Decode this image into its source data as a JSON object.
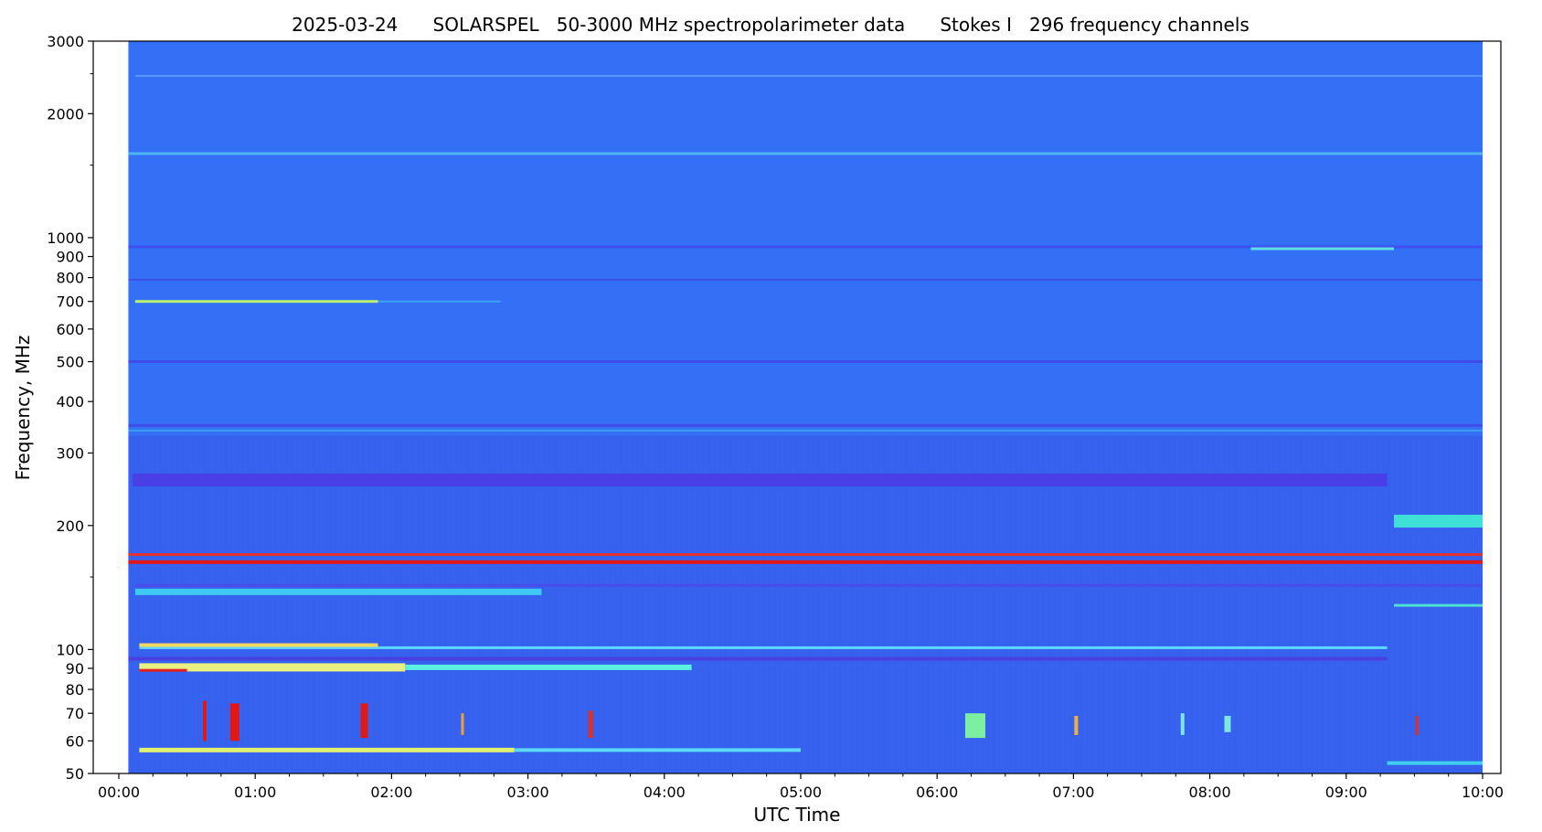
{
  "chart_data": {
    "type": "heatmap",
    "title": "2025-03-24      SOLARSPEL   50-3000 MHz spectropolarimeter data      Stokes I   296 frequency channels",
    "xlabel": "UTC Time",
    "ylabel": "Frequency, MHz",
    "x_range_hours": [
      0,
      10
    ],
    "y_range_mhz": [
      50,
      3000
    ],
    "y_scale": "log",
    "x_ticks": [
      {
        "hour": 0,
        "label": "00:00"
      },
      {
        "hour": 1,
        "label": "01:00"
      },
      {
        "hour": 2,
        "label": "02:00"
      },
      {
        "hour": 3,
        "label": "03:00"
      },
      {
        "hour": 4,
        "label": "04:00"
      },
      {
        "hour": 5,
        "label": "05:00"
      },
      {
        "hour": 6,
        "label": "06:00"
      },
      {
        "hour": 7,
        "label": "07:00"
      },
      {
        "hour": 8,
        "label": "08:00"
      },
      {
        "hour": 9,
        "label": "09:00"
      },
      {
        "hour": 10,
        "label": "10:00"
      }
    ],
    "y_ticks": [
      {
        "mhz": 50,
        "label": "50"
      },
      {
        "mhz": 60,
        "label": "60"
      },
      {
        "mhz": 70,
        "label": "70"
      },
      {
        "mhz": 80,
        "label": "80"
      },
      {
        "mhz": 90,
        "label": "90"
      },
      {
        "mhz": 100,
        "label": "100"
      },
      {
        "mhz": 200,
        "label": "200"
      },
      {
        "mhz": 300,
        "label": "300"
      },
      {
        "mhz": 400,
        "label": "400"
      },
      {
        "mhz": 500,
        "label": "500"
      },
      {
        "mhz": 600,
        "label": "600"
      },
      {
        "mhz": 700,
        "label": "700"
      },
      {
        "mhz": 800,
        "label": "800"
      },
      {
        "mhz": 900,
        "label": "900"
      },
      {
        "mhz": 1000,
        "label": "1000"
      },
      {
        "mhz": 2000,
        "label": "2000"
      },
      {
        "mhz": 3000,
        "label": "3000"
      }
    ],
    "y_minor_ticks_mhz": [
      150,
      1500,
      2500
    ],
    "colormap": "jet",
    "colors": {
      "background": "#3370f5",
      "plot_frame": "#000000"
    },
    "data_coverage_hours": [
      0.07,
      10.0
    ],
    "horizontal_bands": [
      {
        "f": 2470,
        "t0": 0.12,
        "t1": 10.0,
        "color": "#5c95ff",
        "thickness": 2
      },
      {
        "f": 1600,
        "t0": 0.07,
        "t1": 10.0,
        "color": "#4fb4f2",
        "thickness": 3
      },
      {
        "f": 950,
        "t0": 0.07,
        "t1": 10.0,
        "color": "#3f4ff0",
        "thickness": 3
      },
      {
        "f": 940,
        "t0": 8.3,
        "t1": 9.35,
        "color": "#5ce0e6",
        "thickness": 3
      },
      {
        "f": 790,
        "t0": 0.07,
        "t1": 10.0,
        "color": "#3f50e8",
        "thickness": 2
      },
      {
        "f": 700,
        "t0": 0.12,
        "t1": 1.9,
        "color": "#b8f070",
        "thickness": 3
      },
      {
        "f": 700,
        "t0": 1.9,
        "t1": 2.8,
        "color": "#3fa4f4",
        "thickness": 2
      },
      {
        "f": 500,
        "t0": 0.07,
        "t1": 10.0,
        "color": "#3f4cea",
        "thickness": 3
      },
      {
        "f": 350,
        "t0": 0.07,
        "t1": 10.0,
        "color": "#3f4de8",
        "thickness": 3
      },
      {
        "f": 340,
        "t0": 0.07,
        "t1": 10.0,
        "color": "#3a9cf2",
        "thickness": 2
      },
      {
        "f": 258,
        "t0": 0.1,
        "t1": 9.3,
        "color": "#4a3fe6",
        "thickness": 14
      },
      {
        "f": 205,
        "t0": 9.35,
        "t1": 10.0,
        "color": "#3fe0d8",
        "thickness": 14
      },
      {
        "f": 170,
        "t0": 0.07,
        "t1": 10.0,
        "color": "#e8302a",
        "thickness": 3
      },
      {
        "f": 163,
        "t0": 0.07,
        "t1": 10.0,
        "color": "#e01818",
        "thickness": 4
      },
      {
        "f": 143,
        "t0": 0.12,
        "t1": 10.0,
        "color": "#4a4ceb",
        "thickness": 3
      },
      {
        "f": 138,
        "t0": 0.12,
        "t1": 3.1,
        "color": "#3fc8f2",
        "thickness": 7
      },
      {
        "f": 128,
        "t0": 9.35,
        "t1": 10.0,
        "color": "#4de0d0",
        "thickness": 3
      },
      {
        "f": 101,
        "t0": 0.15,
        "t1": 9.3,
        "color": "#5cd6ff",
        "thickness": 3
      },
      {
        "f": 102.5,
        "t0": 0.15,
        "t1": 1.9,
        "color": "#f0d860",
        "thickness": 4
      },
      {
        "f": 95,
        "t0": 0.07,
        "t1": 9.3,
        "color": "#4a3fe0",
        "thickness": 4
      },
      {
        "f": 90.5,
        "t0": 0.15,
        "t1": 2.1,
        "color": "#e8f080",
        "thickness": 9
      },
      {
        "f": 89,
        "t0": 0.15,
        "t1": 0.5,
        "color": "#e02020",
        "thickness": 3
      },
      {
        "f": 90.5,
        "t0": 2.1,
        "t1": 4.2,
        "color": "#5cf0e0",
        "thickness": 6
      },
      {
        "f": 57,
        "t0": 0.15,
        "t1": 2.9,
        "color": "#e0f070",
        "thickness": 5
      },
      {
        "f": 57,
        "t0": 2.9,
        "t1": 5.0,
        "color": "#5cd8f8",
        "thickness": 4
      },
      {
        "f": 53,
        "t0": 9.3,
        "t1": 10.0,
        "color": "#3fd0f0",
        "thickness": 4
      }
    ],
    "bursts": [
      {
        "t": 0.63,
        "f0": 60,
        "f1": 75,
        "color": "#e01818",
        "width": 4
      },
      {
        "t": 0.85,
        "f0": 60,
        "f1": 74,
        "color": "#e01818",
        "width": 10
      },
      {
        "t": 1.8,
        "f0": 61,
        "f1": 74,
        "color": "#e01818",
        "width": 8
      },
      {
        "t": 2.52,
        "f0": 62,
        "f1": 70,
        "color": "#f0a030",
        "width": 3
      },
      {
        "t": 3.46,
        "f0": 61,
        "f1": 71,
        "color": "#e03020",
        "width": 5
      },
      {
        "t": 6.28,
        "f0": 61,
        "f1": 70,
        "color": "#7cf0a0",
        "width": 22
      },
      {
        "t": 7.02,
        "f0": 62,
        "f1": 69,
        "color": "#f0b040",
        "width": 4
      },
      {
        "t": 7.8,
        "f0": 62,
        "f1": 70,
        "color": "#7ce8e0",
        "width": 4
      },
      {
        "t": 8.13,
        "f0": 63,
        "f1": 69,
        "color": "#7ce8e0",
        "width": 7
      },
      {
        "t": 9.52,
        "f0": 62,
        "f1": 69,
        "color": "#e03020",
        "width": 3
      }
    ]
  }
}
